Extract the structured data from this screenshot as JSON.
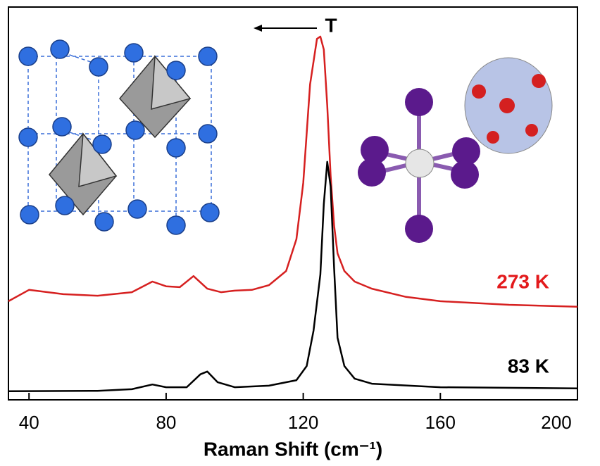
{
  "chart_data": {
    "type": "line",
    "x_label": "Raman Shift (cm⁻¹)",
    "xlim": [
      34,
      200
    ],
    "xticks": [
      40,
      80,
      120,
      160,
      200
    ],
    "ylim": [
      0,
      100
    ],
    "annotations": [
      {
        "text": "T",
        "color": "#000000"
      },
      {
        "text": "273 K",
        "color": "#e31a1c"
      },
      {
        "text": "83 K",
        "color": "#000000"
      }
    ],
    "series": [
      {
        "name": "273 K",
        "color": "#d62020",
        "x": [
          34,
          40,
          50,
          60,
          70,
          76,
          80,
          84,
          88,
          92,
          96,
          100,
          105,
          110,
          115,
          118,
          120,
          122,
          124,
          125,
          126,
          127,
          128,
          129,
          130,
          132,
          135,
          140,
          150,
          160,
          180,
          200
        ],
        "values": [
          25.1,
          28.0,
          26.9,
          26.5,
          27.4,
          30.1,
          28.9,
          28.7,
          31.5,
          28.3,
          27.4,
          27.8,
          28.0,
          29.2,
          32.8,
          40.9,
          55.2,
          80.3,
          91.9,
          92.5,
          89.2,
          74.9,
          57.0,
          44.4,
          37.3,
          32.8,
          30.1,
          28.3,
          26.2,
          25.1,
          24.2,
          23.7
        ]
      },
      {
        "name": "83 K",
        "color": "#000000",
        "x": [
          34,
          60,
          70,
          76,
          80,
          86,
          90,
          92,
          95,
          100,
          110,
          118,
          121,
          123,
          125,
          126,
          127,
          128,
          129,
          130,
          132,
          135,
          140,
          160,
          200
        ],
        "values": [
          2.2,
          2.3,
          2.7,
          3.9,
          3.2,
          3.2,
          6.5,
          7.2,
          4.5,
          3.2,
          3.6,
          5.0,
          8.6,
          17.6,
          31.9,
          49.8,
          60.6,
          54.3,
          33.7,
          15.8,
          8.6,
          5.4,
          4.1,
          3.2,
          2.9
        ]
      }
    ]
  }
}
